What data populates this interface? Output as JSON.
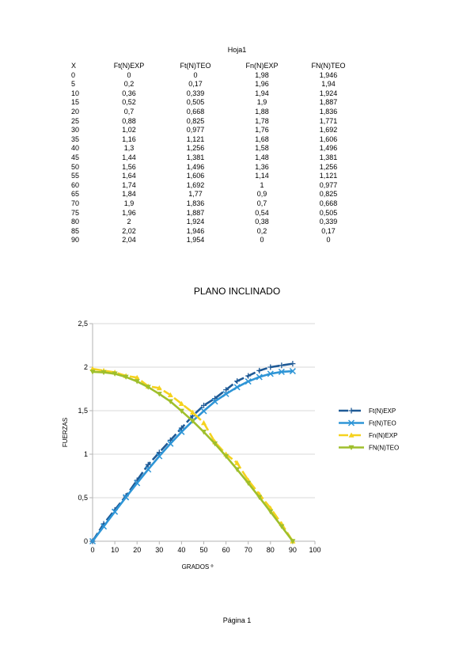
{
  "sheet_title": "Hoja1",
  "footer": "Página 1",
  "table": {
    "headers": [
      "X",
      "Ft(N)EXP",
      "Ft(N)TEO",
      "Fn(N)EXP",
      "FN(N)TEO"
    ],
    "rows": [
      [
        "0",
        "0",
        "0",
        "1,98",
        "1,946"
      ],
      [
        "5",
        "0,2",
        "0,17",
        "1,96",
        "1,94"
      ],
      [
        "10",
        "0,36",
        "0,339",
        "1,94",
        "1,924"
      ],
      [
        "15",
        "0,52",
        "0,505",
        "1,9",
        "1,887"
      ],
      [
        "20",
        "0,7",
        "0,668",
        "1,88",
        "1,836"
      ],
      [
        "25",
        "0,88",
        "0,825",
        "1,78",
        "1,771"
      ],
      [
        "30",
        "1,02",
        "0,977",
        "1,76",
        "1,692"
      ],
      [
        "35",
        "1,16",
        "1,121",
        "1,68",
        "1,606"
      ],
      [
        "40",
        "1,3",
        "1,256",
        "1,58",
        "1,496"
      ],
      [
        "45",
        "1,44",
        "1,381",
        "1,48",
        "1,381"
      ],
      [
        "50",
        "1,56",
        "1,496",
        "1,36",
        "1,256"
      ],
      [
        "55",
        "1,64",
        "1,606",
        "1,14",
        "1,121"
      ],
      [
        "60",
        "1,74",
        "1,692",
        "1",
        "0,977"
      ],
      [
        "65",
        "1,84",
        "1,77",
        "0,9",
        "0,825"
      ],
      [
        "70",
        "1,9",
        "1,836",
        "0,7",
        "0,668"
      ],
      [
        "75",
        "1,96",
        "1,887",
        "0,54",
        "0,505"
      ],
      [
        "80",
        "2",
        "1,924",
        "0,38",
        "0,339"
      ],
      [
        "85",
        "2,02",
        "1,946",
        "0,2",
        "0,17"
      ],
      [
        "90",
        "2,04",
        "1,954",
        "0",
        "0"
      ]
    ]
  },
  "chart_data": {
    "type": "line",
    "title": "PLANO INCLINADO",
    "xlabel": "GRADOS º",
    "ylabel": "FUERZAS",
    "xlim": [
      0,
      100
    ],
    "ylim": [
      0,
      2.5
    ],
    "xticks": [
      0,
      10,
      20,
      30,
      40,
      50,
      60,
      70,
      80,
      90,
      100
    ],
    "yticks": [
      0,
      0.5,
      1,
      1.5,
      2,
      2.5
    ],
    "ytick_labels": [
      "0",
      "0,5",
      "1",
      "1,5",
      "2",
      "2,5"
    ],
    "grid": true,
    "legend": "right",
    "x": [
      0,
      5,
      10,
      15,
      20,
      25,
      30,
      35,
      40,
      45,
      50,
      55,
      60,
      65,
      70,
      75,
      80,
      85,
      90
    ],
    "series": [
      {
        "name": "Ft(N)EXP",
        "color": "#1f5a96",
        "marker": "plus",
        "dashed": true,
        "values": [
          0,
          0.2,
          0.36,
          0.52,
          0.7,
          0.88,
          1.02,
          1.16,
          1.3,
          1.44,
          1.56,
          1.64,
          1.74,
          1.84,
          1.9,
          1.96,
          2,
          2.02,
          2.04
        ]
      },
      {
        "name": "Ft(N)TEO",
        "color": "#2e95d6",
        "marker": "x",
        "dashed": false,
        "values": [
          0,
          0.17,
          0.339,
          0.505,
          0.668,
          0.825,
          0.977,
          1.121,
          1.256,
          1.381,
          1.496,
          1.606,
          1.692,
          1.77,
          1.836,
          1.887,
          1.924,
          1.946,
          1.954
        ]
      },
      {
        "name": "Fn(N)EXP",
        "color": "#f5d21e",
        "marker": "triangle-up",
        "dashed": true,
        "values": [
          1.98,
          1.96,
          1.94,
          1.9,
          1.88,
          1.78,
          1.76,
          1.68,
          1.58,
          1.48,
          1.36,
          1.14,
          1,
          0.9,
          0.7,
          0.54,
          0.38,
          0.2,
          0
        ]
      },
      {
        "name": "FN(N)TEO",
        "color": "#9fbf2c",
        "marker": "triangle-down",
        "dashed": false,
        "values": [
          1.946,
          1.94,
          1.924,
          1.887,
          1.836,
          1.771,
          1.692,
          1.606,
          1.496,
          1.381,
          1.256,
          1.121,
          0.977,
          0.825,
          0.668,
          0.505,
          0.339,
          0.17,
          0
        ]
      }
    ]
  }
}
